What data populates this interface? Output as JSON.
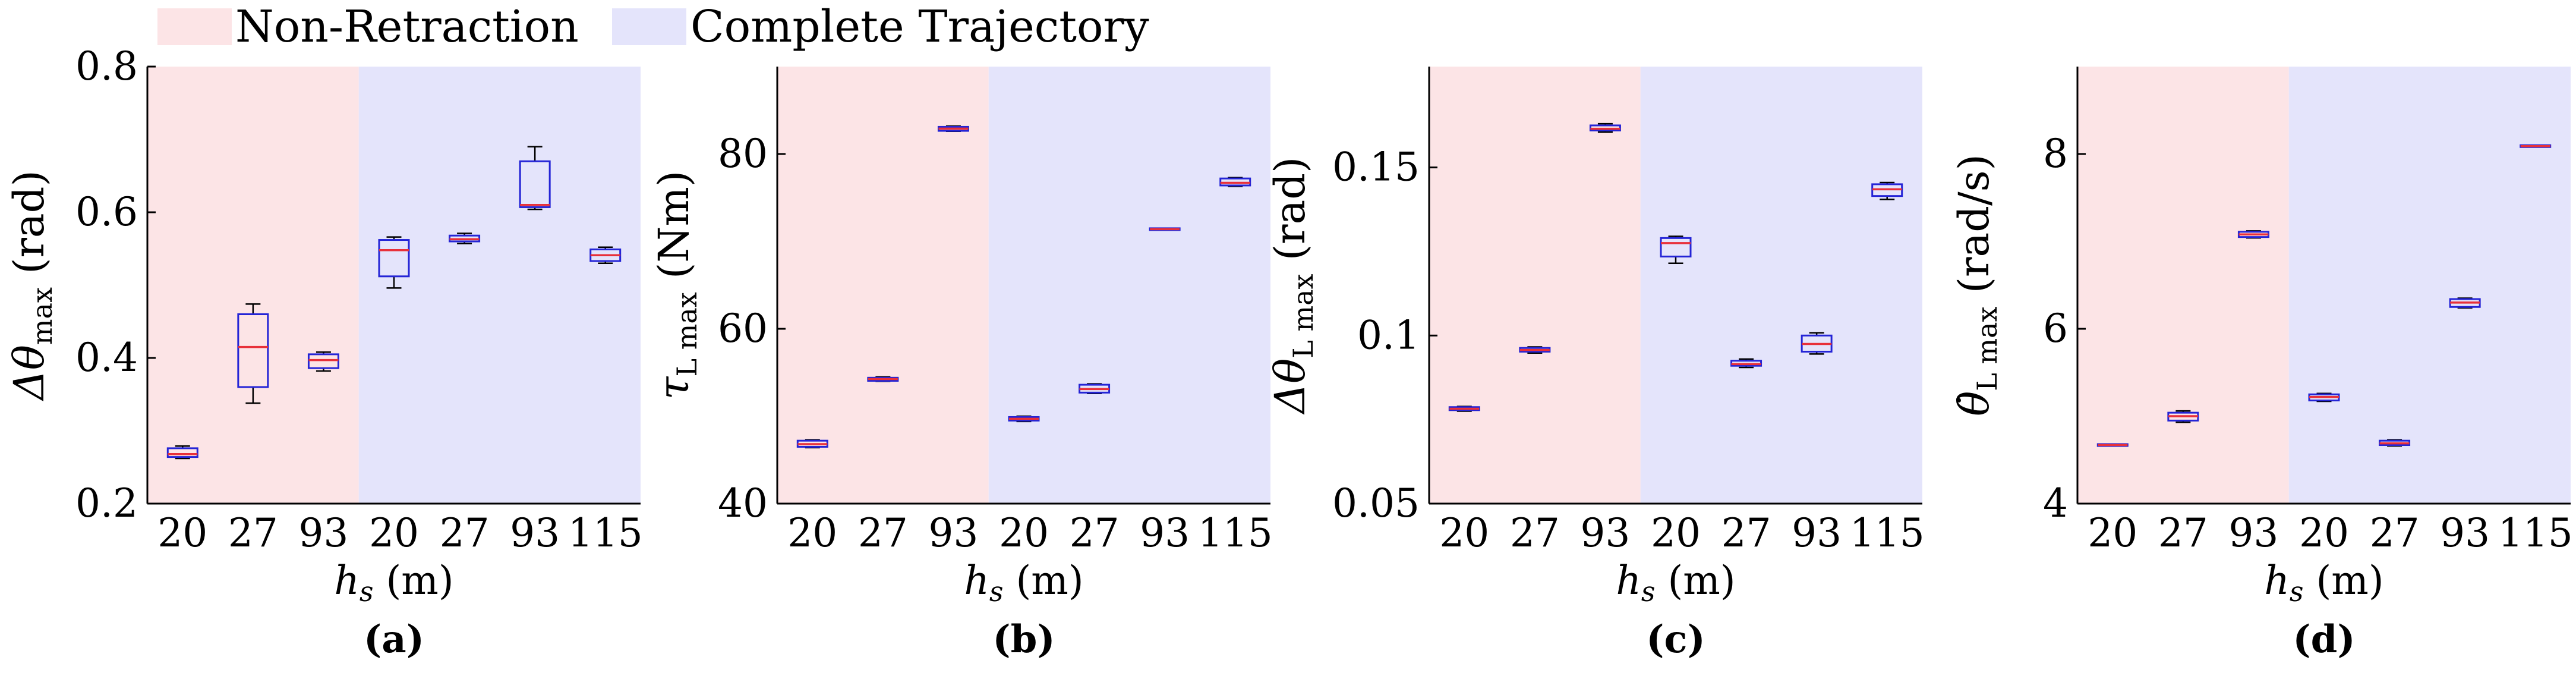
{
  "legend": {
    "items": [
      {
        "label": "Non-Retraction",
        "color": "#fce4e6"
      },
      {
        "label": "Complete Trajectory",
        "color": "#e4e4fb"
      }
    ]
  },
  "colors": {
    "non_retraction": "#fce4e6",
    "complete_trajectory": "#e4e4fb",
    "box_edge": "#2424d6",
    "median": "#e8303a",
    "whisker": "#000000"
  },
  "chart_data": [
    {
      "type": "box",
      "panel_label": "(a)",
      "ylabel": {
        "base": "Δθ",
        "sub": "max",
        "unit": " (rad)"
      },
      "xlabel": {
        "base": "h",
        "sub": "s",
        "unit": " (m)"
      },
      "ylim": [
        0.2,
        0.8
      ],
      "yticks": [
        0.2,
        0.4,
        0.6,
        0.8
      ],
      "ytick_labels": [
        "0.2",
        "0.4",
        "0.6",
        "0.8"
      ],
      "categories": [
        "20",
        "27",
        "93",
        "20",
        "27",
        "93",
        "115"
      ],
      "groups": [
        "Non-Retraction",
        "Non-Retraction",
        "Non-Retraction",
        "Complete Trajectory",
        "Complete Trajectory",
        "Complete Trajectory",
        "Complete Trajectory"
      ],
      "boxes": [
        {
          "min": 0.262,
          "q1": 0.264,
          "median": 0.268,
          "q3": 0.276,
          "max": 0.279
        },
        {
          "min": 0.338,
          "q1": 0.36,
          "median": 0.415,
          "q3": 0.46,
          "max": 0.474
        },
        {
          "min": 0.382,
          "q1": 0.386,
          "median": 0.397,
          "q3": 0.405,
          "max": 0.408
        },
        {
          "min": 0.496,
          "q1": 0.512,
          "median": 0.548,
          "q3": 0.562,
          "max": 0.566
        },
        {
          "min": 0.557,
          "q1": 0.56,
          "median": 0.563,
          "q3": 0.568,
          "max": 0.571
        },
        {
          "min": 0.604,
          "q1": 0.607,
          "median": 0.61,
          "q3": 0.67,
          "max": 0.69
        },
        {
          "min": 0.53,
          "q1": 0.533,
          "median": 0.541,
          "q3": 0.549,
          "max": 0.552
        }
      ]
    },
    {
      "type": "box",
      "panel_label": "(b)",
      "ylabel": {
        "base": "τ",
        "sub": "L max",
        "unit": " (Nm)"
      },
      "xlabel": {
        "base": "h",
        "sub": "s",
        "unit": " (m)"
      },
      "ylim": [
        40,
        90
      ],
      "yticks": [
        40,
        60,
        80
      ],
      "ytick_labels": [
        "40",
        "60",
        "80"
      ],
      "categories": [
        "20",
        "27",
        "93",
        "20",
        "27",
        "93",
        "115"
      ],
      "groups": [
        "Non-Retraction",
        "Non-Retraction",
        "Non-Retraction",
        "Complete Trajectory",
        "Complete Trajectory",
        "Complete Trajectory",
        "Complete Trajectory"
      ],
      "boxes": [
        {
          "min": 46.4,
          "q1": 46.5,
          "median": 46.8,
          "q3": 47.2,
          "max": 47.3
        },
        {
          "min": 54.0,
          "q1": 54.05,
          "median": 54.25,
          "q3": 54.4,
          "max": 54.5
        },
        {
          "min": 82.6,
          "q1": 82.65,
          "median": 82.9,
          "q3": 83.1,
          "max": 83.2
        },
        {
          "min": 49.4,
          "q1": 49.5,
          "median": 49.7,
          "q3": 49.9,
          "max": 50.0
        },
        {
          "min": 52.6,
          "q1": 52.7,
          "median": 53.1,
          "q3": 53.6,
          "max": 53.7
        },
        {
          "min": 71.4,
          "q1": 71.4,
          "median": 71.4,
          "q3": 71.4,
          "max": 71.4
        },
        {
          "min": 76.3,
          "q1": 76.4,
          "median": 76.7,
          "q3": 77.2,
          "max": 77.3
        }
      ]
    },
    {
      "type": "box",
      "panel_label": "(c)",
      "ylabel": {
        "base": "Δθ",
        "sub": "L max",
        "unit": " (rad)"
      },
      "xlabel": {
        "base": "h",
        "sub": "s",
        "unit": " (m)"
      },
      "ylim": [
        0.05,
        0.18
      ],
      "yticks": [
        0.05,
        0.1,
        0.15
      ],
      "ytick_labels": [
        "0.05",
        "0.1",
        "0.15"
      ],
      "categories": [
        "20",
        "27",
        "93",
        "20",
        "27",
        "93",
        "115"
      ],
      "groups": [
        "Non-Retraction",
        "Non-Retraction",
        "Non-Retraction",
        "Complete Trajectory",
        "Complete Trajectory",
        "Complete Trajectory",
        "Complete Trajectory"
      ],
      "boxes": [
        {
          "min": 0.0775,
          "q1": 0.0778,
          "median": 0.0782,
          "q3": 0.0787,
          "max": 0.0789
        },
        {
          "min": 0.0948,
          "q1": 0.0952,
          "median": 0.0957,
          "q3": 0.0963,
          "max": 0.0966
        },
        {
          "min": 0.1605,
          "q1": 0.161,
          "median": 0.1615,
          "q3": 0.1625,
          "max": 0.163
        },
        {
          "min": 0.1215,
          "q1": 0.1235,
          "median": 0.1275,
          "q3": 0.129,
          "max": 0.1295
        },
        {
          "min": 0.0905,
          "q1": 0.091,
          "median": 0.0915,
          "q3": 0.0925,
          "max": 0.093
        },
        {
          "min": 0.0945,
          "q1": 0.0952,
          "median": 0.0975,
          "q3": 0.1,
          "max": 0.1008
        },
        {
          "min": 0.1405,
          "q1": 0.1415,
          "median": 0.1435,
          "q3": 0.145,
          "max": 0.1455
        }
      ]
    },
    {
      "type": "box",
      "panel_label": "(d)",
      "ylabel": {
        "base": "θ̇",
        "sub": "L max",
        "unit": " (rad/s)"
      },
      "xlabel": {
        "base": "h",
        "sub": "s",
        "unit": " (m)"
      },
      "ylim": [
        4,
        9
      ],
      "yticks": [
        4,
        6,
        8
      ],
      "ytick_labels": [
        "4",
        "6",
        "8"
      ],
      "categories": [
        "20",
        "27",
        "93",
        "20",
        "27",
        "93",
        "115"
      ],
      "groups": [
        "Non-Retraction",
        "Non-Retraction",
        "Non-Retraction",
        "Complete Trajectory",
        "Complete Trajectory",
        "Complete Trajectory",
        "Complete Trajectory"
      ],
      "boxes": [
        {
          "min": 4.67,
          "q1": 4.67,
          "median": 4.67,
          "q3": 4.67,
          "max": 4.67
        },
        {
          "min": 4.93,
          "q1": 4.95,
          "median": 5.0,
          "q3": 5.04,
          "max": 5.06
        },
        {
          "min": 7.04,
          "q1": 7.05,
          "median": 7.08,
          "q3": 7.11,
          "max": 7.12
        },
        {
          "min": 5.17,
          "q1": 5.18,
          "median": 5.22,
          "q3": 5.25,
          "max": 5.26
        },
        {
          "min": 4.66,
          "q1": 4.67,
          "median": 4.69,
          "q3": 4.72,
          "max": 4.73
        },
        {
          "min": 6.24,
          "q1": 6.25,
          "median": 6.3,
          "q3": 6.34,
          "max": 6.35
        },
        {
          "min": 8.09,
          "q1": 8.09,
          "median": 8.09,
          "q3": 8.09,
          "max": 8.09
        }
      ]
    }
  ]
}
